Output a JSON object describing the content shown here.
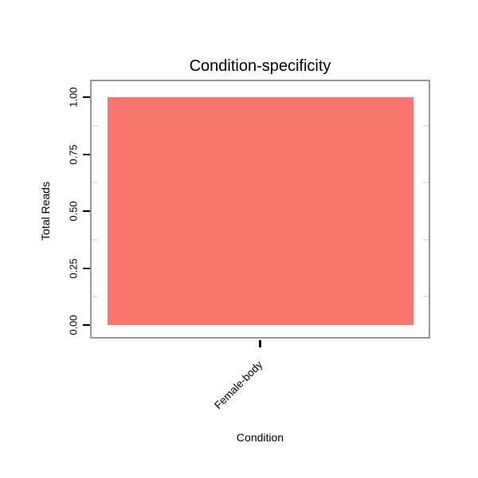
{
  "chart_data": {
    "type": "bar",
    "title": "Condition-specificity",
    "xlabel": "Condition",
    "ylabel": "Total Reads",
    "categories": [
      "Female-body"
    ],
    "values": [
      1.0
    ],
    "series_name": "Total Reads",
    "ylim": [
      0,
      1.0
    ],
    "yticks": [
      0,
      0.25,
      0.5,
      0.75,
      1.0
    ],
    "ytick_labels": [
      "0.00",
      "0.25",
      "0.50",
      "0.75",
      "1.00"
    ],
    "bar_color": "#F8766D",
    "panel_border_color": "#999999",
    "grid": "off",
    "legend": "none"
  }
}
